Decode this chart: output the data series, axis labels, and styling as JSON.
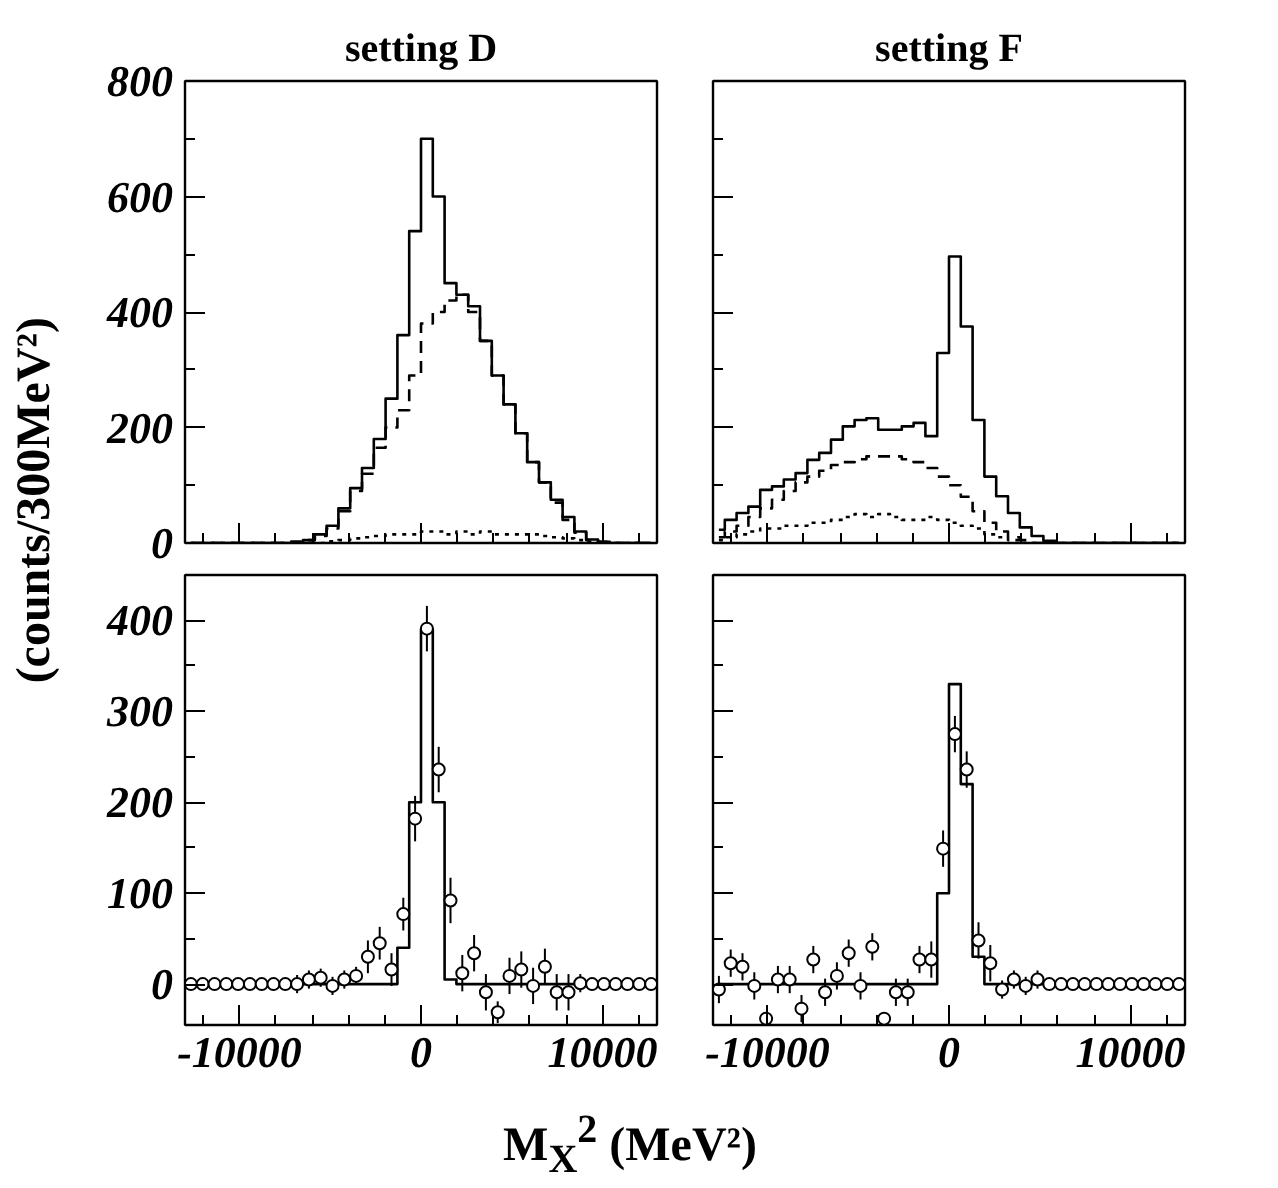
{
  "chart_data": [
    {
      "type": "step",
      "title": "setting D",
      "ylabel": "(counts/300MeV²)",
      "tick_labels": "y",
      "xlim": [
        -13000,
        13000
      ],
      "ylim": [
        0,
        800
      ],
      "xticks": [
        {
          "value": -12000,
          "label": null
        },
        -10000,
        {
          "value": -8000,
          "label": null
        },
        {
          "value": -6000,
          "label": null
        },
        {
          "value": -4000,
          "label": null
        },
        {
          "value": -2000,
          "label": null
        },
        0,
        {
          "value": 2000,
          "label": null
        },
        {
          "value": 4000,
          "label": null
        },
        {
          "value": 6000,
          "label": null
        },
        {
          "value": 8000,
          "label": null
        },
        10000,
        {
          "value": 12000,
          "label": null
        }
      ],
      "yticks": [
        0,
        {
          "value": 100,
          "label": null
        },
        200,
        {
          "value": 300,
          "label": null
        },
        400,
        {
          "value": 500,
          "label": null
        },
        600,
        {
          "value": 700,
          "label": null
        },
        800
      ],
      "x": [
        -12675,
        -12025,
        -11375,
        -10725,
        -10075,
        -9425,
        -8775,
        -8125,
        -7475,
        -6825,
        -6175,
        -5525,
        -4875,
        -4225,
        -3575,
        -2925,
        -2275,
        -1625,
        -975,
        -325,
        325,
        975,
        1625,
        2275,
        2925,
        3575,
        4225,
        4875,
        5525,
        6175,
        6825,
        7475,
        8125,
        8775,
        9425,
        10075,
        10725,
        11375,
        12025,
        12675
      ],
      "series": [
        {
          "color": "#000000",
          "line_style": "solid",
          "values": [
            0,
            0,
            0,
            0,
            0,
            0,
            0,
            0,
            0,
            2,
            5,
            15,
            30,
            60,
            95,
            130,
            180,
            250,
            360,
            540,
            700,
            600,
            450,
            430,
            410,
            350,
            290,
            240,
            190,
            140,
            105,
            75,
            45,
            20,
            6,
            2,
            0,
            0,
            0,
            0
          ]
        },
        {
          "color": "#000000",
          "line_style": "dashed",
          "values": [
            0,
            0,
            0,
            0,
            0,
            0,
            0,
            0,
            0,
            2,
            5,
            12,
            25,
            55,
            90,
            120,
            165,
            200,
            230,
            290,
            380,
            400,
            420,
            430,
            400,
            350,
            290,
            240,
            190,
            140,
            105,
            70,
            40,
            18,
            5,
            2,
            0,
            0,
            0,
            0
          ]
        },
        {
          "color": "#000000",
          "line_style": "dotted",
          "values": [
            0,
            0,
            0,
            0,
            0,
            0,
            0,
            0,
            0,
            0,
            0,
            0,
            3,
            5,
            8,
            10,
            12,
            15,
            15,
            15,
            20,
            20,
            15,
            20,
            15,
            20,
            15,
            15,
            15,
            15,
            12,
            10,
            8,
            5,
            2,
            0,
            0,
            0,
            0,
            0
          ]
        }
      ]
    },
    {
      "type": "step",
      "title": "setting F",
      "tick_labels": false,
      "xlim": [
        -13000,
        13000
      ],
      "ylim": [
        0,
        800
      ],
      "xticks": [
        {
          "value": -12000,
          "label": null
        },
        -10000,
        {
          "value": -8000,
          "label": null
        },
        {
          "value": -6000,
          "label": null
        },
        {
          "value": -4000,
          "label": null
        },
        {
          "value": -2000,
          "label": null
        },
        0,
        {
          "value": 2000,
          "label": null
        },
        {
          "value": 4000,
          "label": null
        },
        {
          "value": 6000,
          "label": null
        },
        {
          "value": 8000,
          "label": null
        },
        10000,
        {
          "value": 12000,
          "label": null
        }
      ],
      "yticks": [
        0,
        {
          "value": 100,
          "label": null
        },
        200,
        {
          "value": 300,
          "label": null
        },
        400,
        {
          "value": 500,
          "label": null
        },
        600,
        {
          "value": 700,
          "label": null
        },
        800
      ],
      "x": [
        -12675,
        -12025,
        -11375,
        -10725,
        -10075,
        -9425,
        -8775,
        -8125,
        -7475,
        -6825,
        -6175,
        -5525,
        -4875,
        -4225,
        -3575,
        -2925,
        -2275,
        -1625,
        -975,
        -325,
        325,
        975,
        1625,
        2275,
        2925,
        3575,
        4225,
        4875,
        5525,
        6175,
        6825,
        7475,
        8125,
        8775,
        9425,
        10075,
        10725,
        11375,
        12025,
        12675
      ],
      "series": [
        {
          "color": "#000000",
          "line_style": "solid",
          "values": [
            23,
            40,
            52,
            63,
            92,
            98,
            110,
            121,
            144,
            156,
            179,
            202,
            213,
            216,
            196,
            196,
            202,
            208,
            185,
            329,
            496,
            375,
            213,
            115,
            81,
            52,
            27,
            12,
            4,
            0,
            0,
            0,
            0,
            0,
            0,
            0,
            0,
            0,
            0,
            0
          ]
        },
        {
          "color": "#000000",
          "line_style": "dashed",
          "values": [
            10,
            20,
            30,
            45,
            60,
            75,
            90,
            105,
            115,
            125,
            135,
            140,
            145,
            150,
            150,
            150,
            145,
            140,
            130,
            115,
            100,
            80,
            55,
            35,
            20,
            10,
            5,
            0,
            0,
            0,
            0,
            0,
            0,
            0,
            0,
            0,
            0,
            0,
            0,
            0
          ]
        },
        {
          "color": "#000000",
          "line_style": "dotted",
          "values": [
            5,
            10,
            15,
            20,
            25,
            25,
            30,
            30,
            35,
            35,
            40,
            45,
            50,
            45,
            50,
            45,
            40,
            40,
            45,
            40,
            35,
            30,
            25,
            15,
            10,
            5,
            0,
            0,
            0,
            0,
            0,
            0,
            0,
            0,
            0,
            0,
            0,
            0,
            0,
            0
          ]
        }
      ]
    },
    {
      "type": "step",
      "xlabel": "M$_{X}$$^{2}$ (MeV²)",
      "xlim": [
        -13000,
        13000
      ],
      "ylim": [
        -45,
        450
      ],
      "xticks": [
        {
          "value": -12000,
          "label": null
        },
        -10000,
        {
          "value": -8000,
          "label": null
        },
        {
          "value": -6000,
          "label": null
        },
        {
          "value": -4000,
          "label": null
        },
        {
          "value": -2000,
          "label": null
        },
        0,
        {
          "value": 2000,
          "label": null
        },
        {
          "value": 4000,
          "label": null
        },
        {
          "value": 6000,
          "label": null
        },
        {
          "value": 8000,
          "label": null
        },
        10000,
        {
          "value": 12000,
          "label": null
        }
      ],
      "yticks": [
        0,
        {
          "value": 50,
          "label": null
        },
        100,
        {
          "value": 150,
          "label": null
        },
        200,
        {
          "value": 250,
          "label": null
        },
        300,
        {
          "value": 350,
          "label": null
        },
        400
      ],
      "x": [
        -12675,
        -12025,
        -11375,
        -10725,
        -10075,
        -9425,
        -8775,
        -8125,
        -7475,
        -6825,
        -6175,
        -5525,
        -4875,
        -4225,
        -3575,
        -2925,
        -2275,
        -1625,
        -975,
        -325,
        325,
        975,
        1625,
        2275,
        2925,
        3575,
        4225,
        4875,
        5525,
        6175,
        6825,
        7475,
        8125,
        8775,
        9425,
        10075,
        10725,
        11375,
        12025,
        12675
      ],
      "series": [
        {
          "color": "#000000",
          "line_style": "solid",
          "values": [
            0,
            0,
            0,
            0,
            0,
            0,
            0,
            0,
            0,
            0,
            0,
            0,
            0,
            0,
            0,
            0,
            0,
            0,
            40,
            200,
            390,
            200,
            5,
            0,
            0,
            0,
            0,
            0,
            0,
            0,
            0,
            0,
            0,
            0,
            0,
            0,
            0,
            0,
            0,
            0
          ]
        },
        {
          "type": "scatter",
          "marker": "circle",
          "color": "#000000",
          "values": [
            0,
            0,
            0,
            0,
            0,
            0,
            0,
            0,
            0,
            0,
            5,
            7,
            -2,
            5,
            9,
            30,
            45,
            16,
            77,
            182,
            391,
            236,
            92,
            12,
            34,
            -9,
            -31,
            9,
            16,
            -2,
            19,
            -9,
            -9,
            1,
            0,
            0,
            0,
            0,
            0,
            0
          ],
          "errors": [
            2,
            2,
            2,
            2,
            2,
            2,
            2,
            2,
            2,
            10,
            10,
            10,
            10,
            10,
            10,
            18,
            18,
            18,
            18,
            25,
            25,
            25,
            25,
            20,
            20,
            20,
            12,
            20,
            20,
            20,
            20,
            20,
            20,
            10,
            2,
            2,
            2,
            2,
            2,
            2
          ]
        }
      ]
    },
    {
      "type": "step",
      "tick_labels": "x",
      "xlim": [
        -13000,
        13000
      ],
      "ylim": [
        -45,
        450
      ],
      "xticks": [
        {
          "value": -12000,
          "label": null
        },
        -10000,
        {
          "value": -8000,
          "label": null
        },
        {
          "value": -6000,
          "label": null
        },
        {
          "value": -4000,
          "label": null
        },
        {
          "value": -2000,
          "label": null
        },
        0,
        {
          "value": 2000,
          "label": null
        },
        {
          "value": 4000,
          "label": null
        },
        {
          "value": 6000,
          "label": null
        },
        {
          "value": 8000,
          "label": null
        },
        10000,
        {
          "value": 12000,
          "label": null
        }
      ],
      "yticks": [
        0,
        {
          "value": 50,
          "label": null
        },
        100,
        {
          "value": 150,
          "label": null
        },
        200,
        {
          "value": 250,
          "label": null
        },
        300,
        {
          "value": 350,
          "label": null
        },
        400
      ],
      "x": [
        -12675,
        -12025,
        -11375,
        -10725,
        -10075,
        -9425,
        -8775,
        -8125,
        -7475,
        -6825,
        -6175,
        -5525,
        -4875,
        -4225,
        -3575,
        -2925,
        -2275,
        -1625,
        -975,
        -325,
        325,
        975,
        1625,
        2275,
        2925,
        3575,
        4225,
        4875,
        5525,
        6175,
        6825,
        7475,
        8125,
        8775,
        9425,
        10075,
        10725,
        11375,
        12025,
        12675
      ],
      "series": [
        {
          "color": "#000000",
          "line_style": "solid",
          "values": [
            0,
            0,
            0,
            0,
            0,
            0,
            0,
            0,
            0,
            0,
            0,
            0,
            0,
            0,
            0,
            0,
            0,
            0,
            0,
            100,
            330,
            220,
            30,
            0,
            0,
            0,
            0,
            0,
            0,
            0,
            0,
            0,
            0,
            0,
            0,
            0,
            0,
            0,
            0,
            0
          ]
        },
        {
          "type": "scatter",
          "marker": "circle",
          "color": "#000000",
          "values": [
            -6,
            23,
            19,
            -2,
            -38,
            5,
            5,
            -27,
            27,
            -9,
            9,
            34,
            -2,
            41,
            -38,
            -9,
            -9,
            27,
            27,
            149,
            275,
            236,
            48,
            23,
            -6,
            5,
            -2,
            5,
            0,
            0,
            0,
            0,
            0,
            0,
            0,
            0,
            0,
            0,
            0,
            0
          ],
          "errors": [
            15,
            15,
            15,
            15,
            7,
            15,
            15,
            15,
            15,
            15,
            15,
            15,
            15,
            15,
            7,
            15,
            15,
            15,
            20,
            20,
            20,
            20,
            20,
            20,
            10,
            10,
            10,
            10,
            2,
            2,
            2,
            2,
            2,
            2,
            2,
            2,
            2,
            2,
            2,
            2
          ]
        }
      ]
    }
  ]
}
